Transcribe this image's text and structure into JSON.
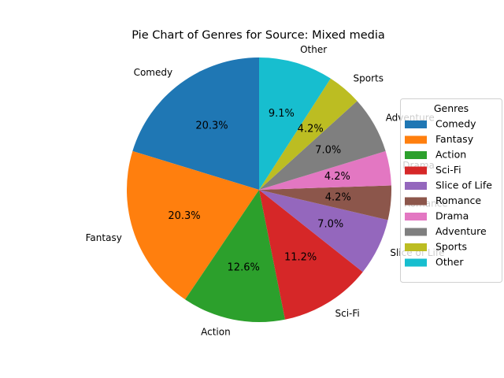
{
  "chart_data": {
    "type": "pie",
    "title": "Pie Chart of Genres for Source: Mixed media",
    "categories": [
      "Comedy",
      "Fantasy",
      "Action",
      "Sci-Fi",
      "Slice of Life",
      "Romance",
      "Drama",
      "Adventure",
      "Sports",
      "Other"
    ],
    "values": [
      20.3,
      20.3,
      12.6,
      11.2,
      7.0,
      4.2,
      4.2,
      7.0,
      4.2,
      9.1
    ],
    "value_labels": [
      "20.3%",
      "20.3%",
      "12.6%",
      "11.2%",
      "7.0%",
      "4.2%",
      "4.2%",
      "7.0%",
      "4.2%",
      "9.1%"
    ],
    "colors": [
      "#1f77b4",
      "#ff7f0e",
      "#2ca02c",
      "#d62728",
      "#9467bd",
      "#8c564b",
      "#e377c2",
      "#7f7f7f",
      "#bcbd22",
      "#17becf"
    ],
    "start_angle_deg": 90,
    "direction": "counterclockwise",
    "legend": {
      "title": "Genres",
      "placement": "right",
      "entries": [
        "Comedy",
        "Fantasy",
        "Action",
        "Sci-Fi",
        "Slice of Life",
        "Romance",
        "Drama",
        "Adventure",
        "Sports",
        "Other"
      ]
    }
  }
}
